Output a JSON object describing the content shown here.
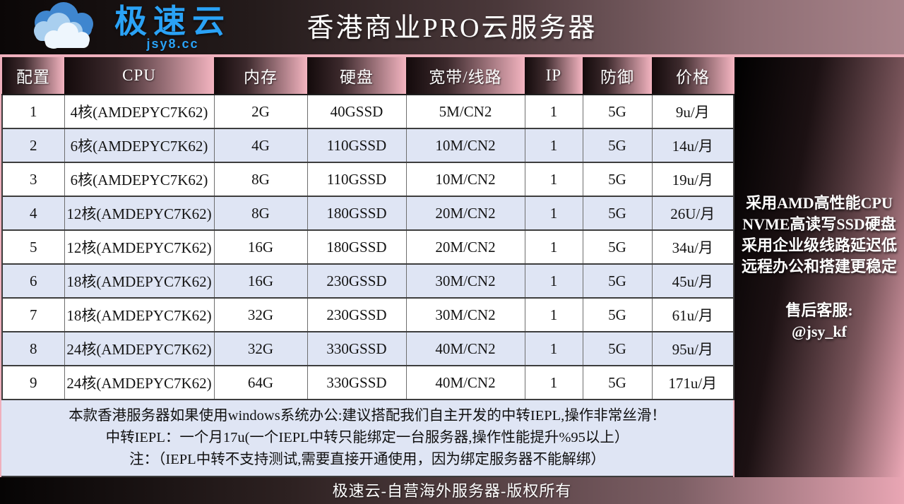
{
  "brand": {
    "name": "极速云",
    "domain": "jsy8.cc"
  },
  "header": {
    "title": "香港商业PRO云服务器"
  },
  "table": {
    "columns": [
      "配置",
      "CPU",
      "内存",
      "硬盘",
      "宽带/线路",
      "IP",
      "防御",
      "价格"
    ],
    "rows": [
      [
        "1",
        "4核(AMDEPYC7K62)",
        "2G",
        "40GSSD",
        "5M/CN2",
        "1",
        "5G",
        "9u/月"
      ],
      [
        "2",
        "6核(AMDEPYC7K62)",
        "4G",
        "110GSSD",
        "10M/CN2",
        "1",
        "5G",
        "14u/月"
      ],
      [
        "3",
        "6核(AMDEPYC7K62)",
        "8G",
        "110GSSD",
        "10M/CN2",
        "1",
        "5G",
        "19u/月"
      ],
      [
        "4",
        "12核(AMDEPYC7K62)",
        "8G",
        "180GSSD",
        "20M/CN2",
        "1",
        "5G",
        "26U/月"
      ],
      [
        "5",
        "12核(AMDEPYC7K62)",
        "16G",
        "180GSSD",
        "20M/CN2",
        "1",
        "5G",
        "34u/月"
      ],
      [
        "6",
        "18核(AMDEPYC7K62)",
        "16G",
        "230GSSD",
        "30M/CN2",
        "1",
        "5G",
        "45u/月"
      ],
      [
        "7",
        "18核(AMDEPYC7K62)",
        "32G",
        "230GSSD",
        "30M/CN2",
        "1",
        "5G",
        "61u/月"
      ],
      [
        "8",
        "24核(AMDEPYC7K62)",
        "32G",
        "330GSSD",
        "40M/CN2",
        "1",
        "5G",
        "95u/月"
      ],
      [
        "9",
        "24核(AMDEPYC7K62)",
        "64G",
        "330GSSD",
        "40M/CN2",
        "1",
        "5G",
        "171u/月"
      ]
    ]
  },
  "side_panel": {
    "features": [
      "采用AMD高性能CPU",
      "NVME高读写SSD硬盘",
      "采用企业级线路延迟低",
      "远程办公和搭建更稳定"
    ],
    "support_label": "售后客服:",
    "support_handle": "@jsy_kf"
  },
  "notes": [
    "本款香港服务器如果使用windows系统办公:建议搭配我们自主开发的中转IEPL,操作非常丝滑！",
    "中转IEPL：一个月17u(一个IEPL中转只能绑定一台服务器,操作性能提升%95以上）",
    "注：（IEPL中转不支持测试,需要直接开通使用，因为绑定服务器不能解绑）"
  ],
  "footer": {
    "text": "极速云-自营海外服务器-版权所有"
  },
  "colors": {
    "brand_blue": "#2aa2f6",
    "page_pink": "#efb0bd",
    "header_gradient_dark": "#130a0b",
    "header_gradient_pink": "#f3b4c0",
    "row_alt": "#dfe5f4",
    "panel_text": "#ffffff"
  }
}
